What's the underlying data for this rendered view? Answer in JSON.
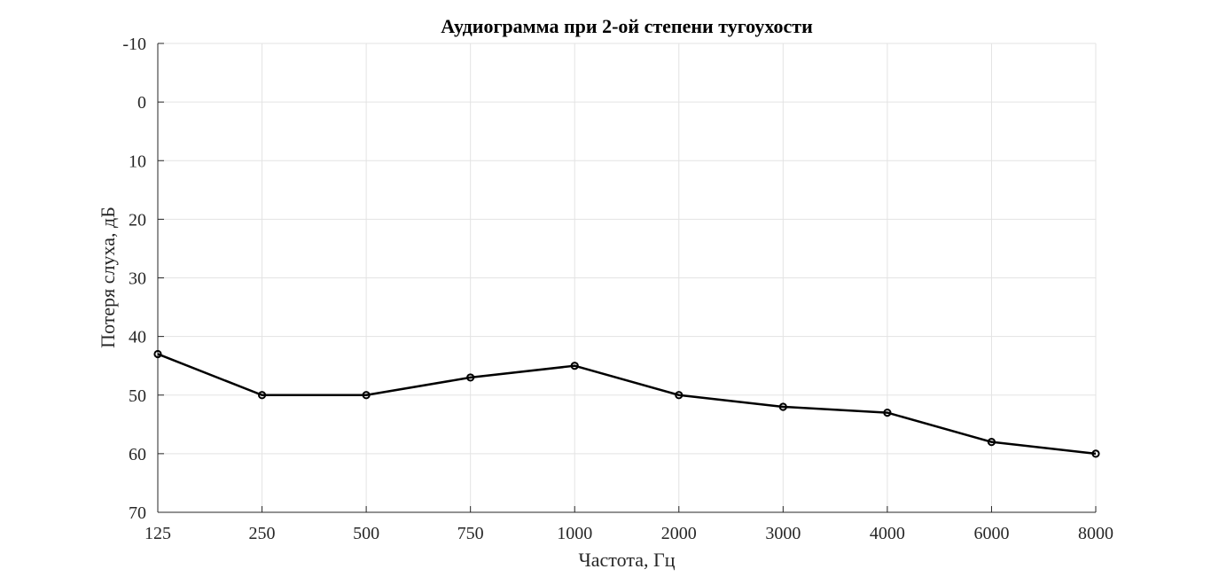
{
  "chart_data": {
    "type": "line",
    "title": "Аудиограмма при 2-ой степени тугоухости",
    "xlabel": "Частота, Гц",
    "ylabel": "Потеря слуха, дБ",
    "categories": [
      "125",
      "250",
      "500",
      "750",
      "1000",
      "2000",
      "3000",
      "4000",
      "6000",
      "8000"
    ],
    "y_ticks": [
      "-10",
      "0",
      "10",
      "20",
      "30",
      "40",
      "50",
      "60",
      "70"
    ],
    "ylim": [
      -10,
      70
    ],
    "y_reversed": true,
    "grid": true,
    "series": [
      {
        "values": [
          43,
          50,
          50,
          47,
          45,
          50,
          52,
          53,
          58,
          60
        ],
        "color": "#000000",
        "marker": "circle"
      }
    ]
  }
}
